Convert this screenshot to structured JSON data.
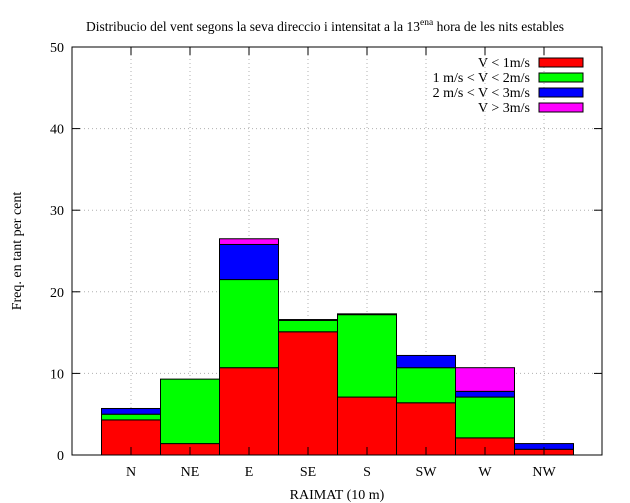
{
  "chart_data": {
    "type": "bar",
    "stacked": true,
    "title": "Distribucio del vent segons la seva direccio i intensitat a la 13",
    "title_sup": "ena",
    "title_end": " hora de les nits estables",
    "xlabel": "RAIMAT (10 m)",
    "ylabel": "Freq. en tant per cent",
    "ylim": [
      0,
      50
    ],
    "yticks": [
      0,
      10,
      20,
      30,
      40,
      50
    ],
    "grid": true,
    "legend_position": "top-right",
    "categories": [
      "N",
      "NE",
      "E",
      "SE",
      "S",
      "SW",
      "W",
      "NW"
    ],
    "series": [
      {
        "name": "V < 1m/s",
        "color": "#ff0000",
        "values": [
          4.3,
          1.4,
          10.7,
          15.1,
          7.1,
          6.4,
          2.1,
          0.7
        ]
      },
      {
        "name": "1 m/s < V < 2m/s",
        "color": "#00ff00",
        "values": [
          0.7,
          7.9,
          10.8,
          1.4,
          10.1,
          4.3,
          5.0,
          0.0
        ]
      },
      {
        "name": "2 m/s < V < 3m/s",
        "color": "#0000ff",
        "values": [
          0.7,
          0.0,
          4.3,
          0.1,
          0.1,
          1.5,
          0.7,
          0.7
        ]
      },
      {
        "name": "V > 3m/s",
        "color": "#ff00ff",
        "values": [
          0.0,
          0.0,
          0.7,
          0.0,
          0.0,
          0.0,
          2.9,
          0.0
        ]
      }
    ]
  }
}
